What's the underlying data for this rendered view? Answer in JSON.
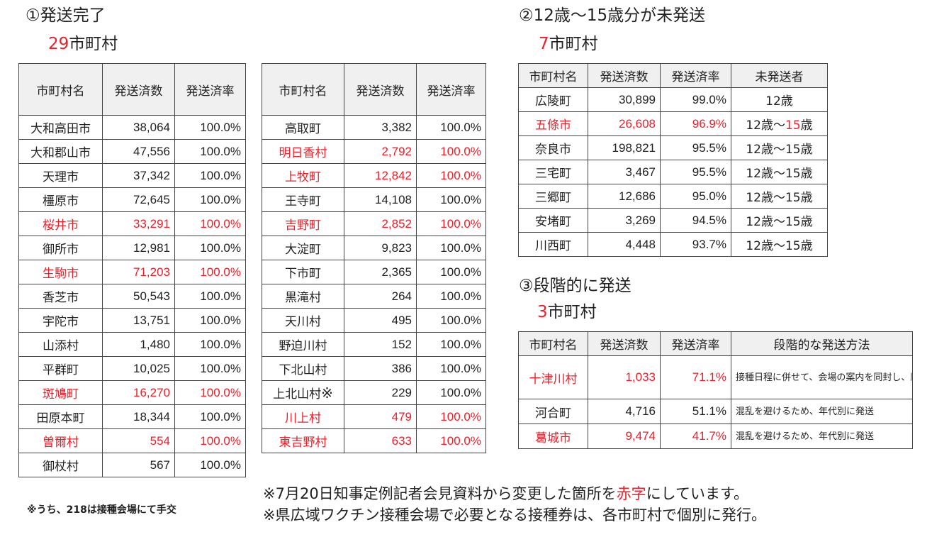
{
  "sec1": {
    "title": "①発送完了",
    "count_num": "29",
    "count_suffix": "市町村"
  },
  "sec2": {
    "title": "②12歳～15歳分が未発送",
    "count_num": "7",
    "count_suffix": "市町村"
  },
  "sec3": {
    "title": "③段階的に発送",
    "count_num": "3",
    "count_suffix": "市町村"
  },
  "headers": {
    "name": "市町村名",
    "sent": "発送済数",
    "rate": "発送済率",
    "unsent": "未発送者",
    "method": "段階的な発送方法"
  },
  "table1": [
    {
      "name": "大和高田市",
      "sent": "38,064",
      "rate": "100.0%",
      "hl": false
    },
    {
      "name": "大和郡山市",
      "sent": "47,556",
      "rate": "100.0%",
      "hl": false
    },
    {
      "name": "天理市",
      "sent": "37,342",
      "rate": "100.0%",
      "hl": false
    },
    {
      "name": "橿原市",
      "sent": "72,645",
      "rate": "100.0%",
      "hl": false
    },
    {
      "name": "桜井市",
      "sent": "33,291",
      "rate": "100.0%",
      "hl": true
    },
    {
      "name": "御所市",
      "sent": "12,981",
      "rate": "100.0%",
      "hl": false
    },
    {
      "name": "生駒市",
      "sent": "71,203",
      "rate": "100.0%",
      "hl": true
    },
    {
      "name": "香芝市",
      "sent": "50,543",
      "rate": "100.0%",
      "hl": false
    },
    {
      "name": "宇陀市",
      "sent": "13,751",
      "rate": "100.0%",
      "hl": false
    },
    {
      "name": "山添村",
      "sent": "1,480",
      "rate": "100.0%",
      "hl": false
    },
    {
      "name": "平群町",
      "sent": "10,025",
      "rate": "100.0%",
      "hl": false
    },
    {
      "name": "斑鳩町",
      "sent": "16,270",
      "rate": "100.0%",
      "hl": true
    },
    {
      "name": "田原本町",
      "sent": "18,344",
      "rate": "100.0%",
      "hl": false
    },
    {
      "name": "曽爾村",
      "sent": "554",
      "rate": "100.0%",
      "hl": true
    },
    {
      "name": "御杖村",
      "sent": "567",
      "rate": "100.0%",
      "hl": false
    }
  ],
  "table2": [
    {
      "name": "高取町",
      "sent": "3,382",
      "rate": "100.0%",
      "hl": false
    },
    {
      "name": "明日香村",
      "sent": "2,792",
      "rate": "100.0%",
      "hl": true
    },
    {
      "name": "上牧町",
      "sent": "12,842",
      "rate": "100.0%",
      "hl": true
    },
    {
      "name": "王寺町",
      "sent": "14,108",
      "rate": "100.0%",
      "hl": false
    },
    {
      "name": "吉野町",
      "sent": "2,852",
      "rate": "100.0%",
      "hl": true
    },
    {
      "name": "大淀町",
      "sent": "9,823",
      "rate": "100.0%",
      "hl": false
    },
    {
      "name": "下市町",
      "sent": "2,365",
      "rate": "100.0%",
      "hl": false
    },
    {
      "name": "黒滝村",
      "sent": "264",
      "rate": "100.0%",
      "hl": false
    },
    {
      "name": "天川村",
      "sent": "495",
      "rate": "100.0%",
      "hl": false
    },
    {
      "name": "野迫川村",
      "sent": "152",
      "rate": "100.0%",
      "hl": false
    },
    {
      "name": "下北山村",
      "sent": "386",
      "rate": "100.0%",
      "hl": false
    },
    {
      "name": "上北山村",
      "sent": "229",
      "rate": "100.0%",
      "hl": false,
      "mark": "※"
    },
    {
      "name": "川上村",
      "sent": "479",
      "rate": "100.0%",
      "hl": true
    },
    {
      "name": "東吉野村",
      "sent": "633",
      "rate": "100.0%",
      "hl": true
    }
  ],
  "table3": [
    {
      "name": "広陵町",
      "sent": "30,899",
      "rate": "99.0%",
      "unsent": "12歳",
      "hl": false
    },
    {
      "name": "五條市",
      "sent": "26,608",
      "rate": "96.9%",
      "unsent_a": "12歳～",
      "unsent_b": "15",
      "unsent_c": "歳",
      "hl": true
    },
    {
      "name": "奈良市",
      "sent": "198,821",
      "rate": "95.5%",
      "unsent": "12歳～15歳",
      "hl": false
    },
    {
      "name": "三宅町",
      "sent": "3,467",
      "rate": "95.5%",
      "unsent": "12歳～15歳",
      "hl": false
    },
    {
      "name": "三郷町",
      "sent": "12,686",
      "rate": "95.0%",
      "unsent": "12歳～15歳",
      "hl": false
    },
    {
      "name": "安堵町",
      "sent": "3,269",
      "rate": "94.5%",
      "unsent": "12歳～15歳",
      "hl": false
    },
    {
      "name": "川西町",
      "sent": "4,448",
      "rate": "93.7%",
      "unsent": "12歳～15歳",
      "hl": false
    }
  ],
  "table4": [
    {
      "name": "十津川村",
      "sent": "1,033",
      "rate": "71.1%",
      "method": "接種日程に併せて、会場の案内を同封し、順次発送",
      "hl": true
    },
    {
      "name": "河合町",
      "sent": "4,716",
      "rate": "51.1%",
      "method": "混乱を避けるため、年代別に発送",
      "hl": false
    },
    {
      "name": "葛城市",
      "sent": "9,474",
      "rate": "41.7%",
      "method": "混乱を避けるため、年代別に発送",
      "hl": true
    }
  ],
  "footnote_left": "※うち、218は接種会場にて手交",
  "note1": {
    "pre": "※7月20日知事定例記者会見資料から変更した箇所を",
    "red": "赤字",
    "post": "にしています。"
  },
  "note2": "※県広域ワクチン接種会場で必要となる接種券は、各市町村で個別に発行。",
  "colors": {
    "highlight": "#e8212b",
    "header_bg": "#f0f0f0",
    "border": "#444444"
  }
}
